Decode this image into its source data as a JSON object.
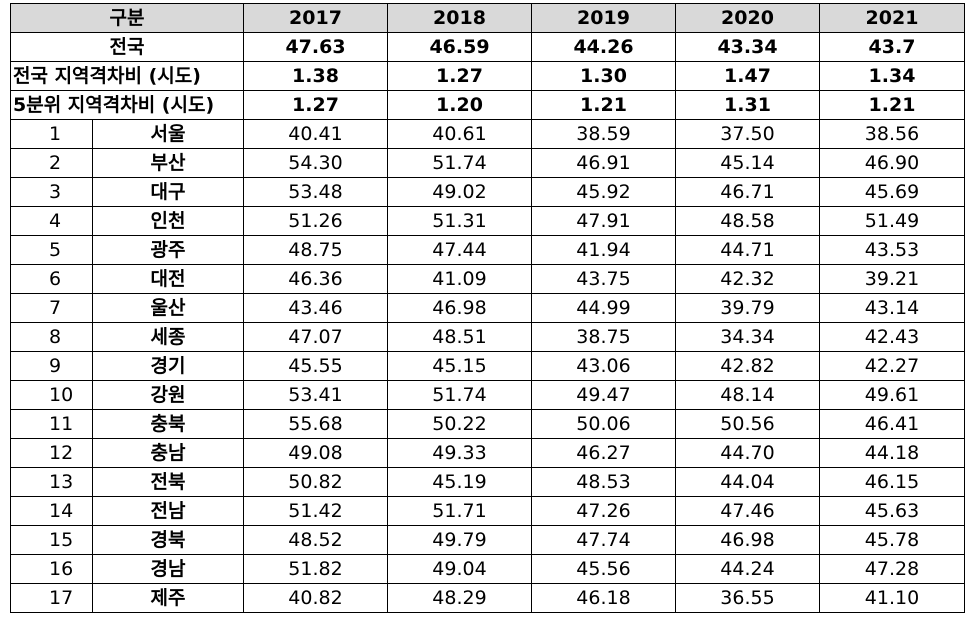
{
  "header": {
    "label": "구분",
    "years": [
      "2017",
      "2018",
      "2019",
      "2020",
      "2021"
    ]
  },
  "summary": [
    {
      "label": "전국",
      "values": [
        "47.63",
        "46.59",
        "44.26",
        "43.34",
        "43.7"
      ]
    },
    {
      "label": "전국 지역격차비 (시도)",
      "values": [
        "1.38",
        "1.27",
        "1.30",
        "1.47",
        "1.34"
      ]
    },
    {
      "label": "5분위 지역격차비 (시도)",
      "values": [
        "1.27",
        "1.20",
        "1.21",
        "1.31",
        "1.21"
      ]
    }
  ],
  "regions": [
    {
      "no": "1",
      "name": "서울",
      "values": [
        "40.41",
        "40.61",
        "38.59",
        "37.50",
        "38.56"
      ]
    },
    {
      "no": "2",
      "name": "부산",
      "values": [
        "54.30",
        "51.74",
        "46.91",
        "45.14",
        "46.90"
      ]
    },
    {
      "no": "3",
      "name": "대구",
      "values": [
        "53.48",
        "49.02",
        "45.92",
        "46.71",
        "45.69"
      ]
    },
    {
      "no": "4",
      "name": "인천",
      "values": [
        "51.26",
        "51.31",
        "47.91",
        "48.58",
        "51.49"
      ]
    },
    {
      "no": "5",
      "name": "광주",
      "values": [
        "48.75",
        "47.44",
        "41.94",
        "44.71",
        "43.53"
      ]
    },
    {
      "no": "6",
      "name": "대전",
      "values": [
        "46.36",
        "41.09",
        "43.75",
        "42.32",
        "39.21"
      ]
    },
    {
      "no": "7",
      "name": "울산",
      "values": [
        "43.46",
        "46.98",
        "44.99",
        "39.79",
        "43.14"
      ]
    },
    {
      "no": "8",
      "name": "세종",
      "values": [
        "47.07",
        "48.51",
        "38.75",
        "34.34",
        "42.43"
      ]
    },
    {
      "no": "9",
      "name": "경기",
      "values": [
        "45.55",
        "45.15",
        "43.06",
        "42.82",
        "42.27"
      ]
    },
    {
      "no": "10",
      "name": "강원",
      "values": [
        "53.41",
        "51.74",
        "49.47",
        "48.14",
        "49.61"
      ]
    },
    {
      "no": "11",
      "name": "충북",
      "values": [
        "55.68",
        "50.22",
        "50.06",
        "50.56",
        "46.41"
      ]
    },
    {
      "no": "12",
      "name": "충남",
      "values": [
        "49.08",
        "49.33",
        "46.27",
        "44.70",
        "44.18"
      ]
    },
    {
      "no": "13",
      "name": "전북",
      "values": [
        "50.82",
        "45.19",
        "48.53",
        "44.04",
        "46.15"
      ]
    },
    {
      "no": "14",
      "name": "전남",
      "values": [
        "51.42",
        "51.71",
        "47.26",
        "47.46",
        "45.63"
      ]
    },
    {
      "no": "15",
      "name": "경북",
      "values": [
        "48.52",
        "49.79",
        "47.74",
        "46.98",
        "45.78"
      ]
    },
    {
      "no": "16",
      "name": "경남",
      "values": [
        "51.82",
        "49.04",
        "45.56",
        "44.24",
        "47.28"
      ]
    },
    {
      "no": "17",
      "name": "제주",
      "values": [
        "40.82",
        "48.29",
        "46.18",
        "36.55",
        "41.10"
      ]
    }
  ]
}
